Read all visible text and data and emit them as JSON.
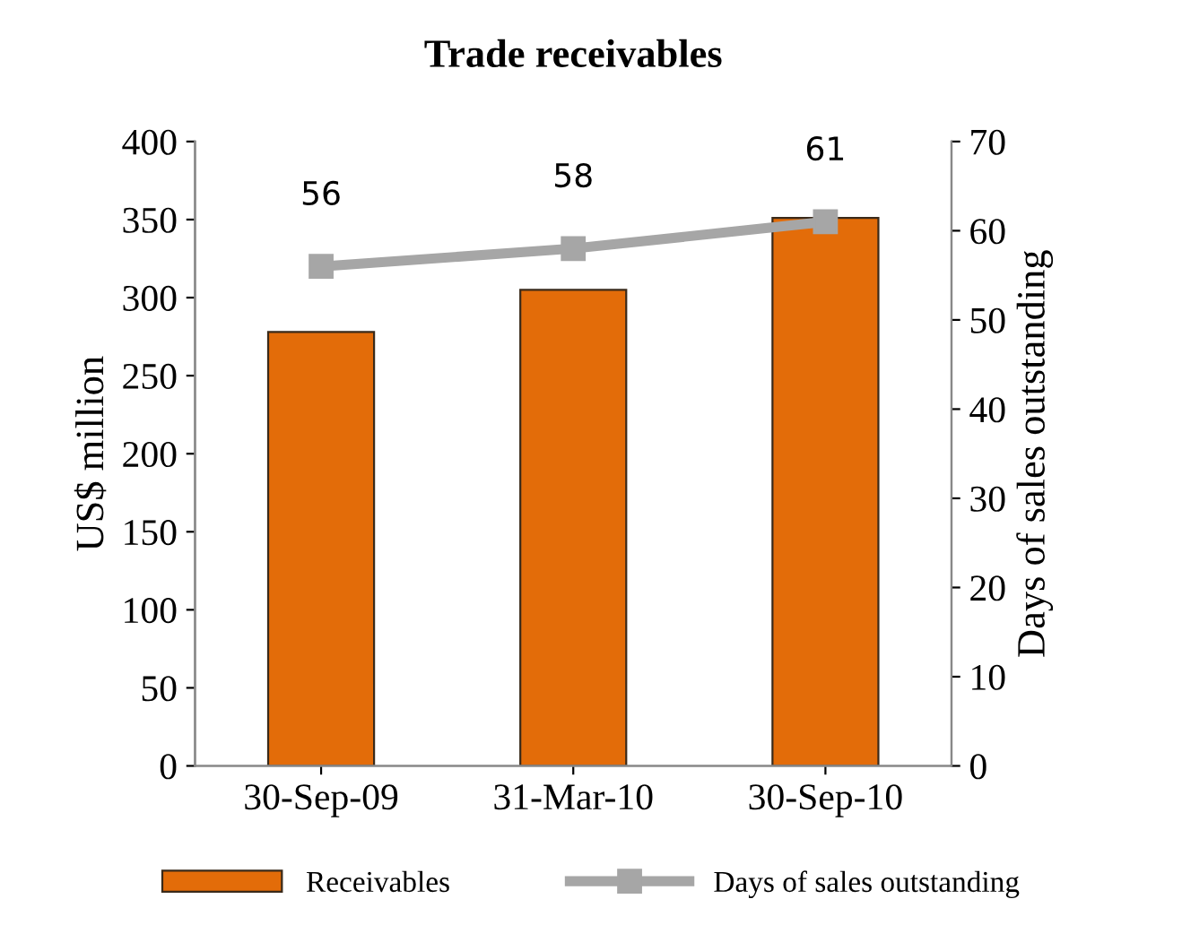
{
  "chart_data": {
    "type": "bar",
    "title": "Trade receivables",
    "ylabel": "US$ million",
    "y2label": "Days of sales outstanding",
    "categories": [
      "30-Sep-09",
      "31-Mar-10",
      "30-Sep-10"
    ],
    "series": [
      {
        "name": "Receivables",
        "color": "#e36c09",
        "values": [
          278,
          305,
          351
        ]
      },
      {
        "name": "Days of sales outstanding",
        "type": "line",
        "axis": "y2",
        "color": "#a6a6a6",
        "values": [
          56,
          58,
          61
        ],
        "value_labels": [
          "56",
          "58",
          "61"
        ],
        "marker": "square"
      }
    ],
    "ylim": [
      0,
      400
    ],
    "yticks": [
      0,
      50,
      100,
      150,
      200,
      250,
      300,
      350,
      400
    ],
    "y2lim": [
      0,
      70
    ],
    "y2ticks": [
      0,
      10,
      20,
      30,
      40,
      50,
      60,
      70
    ],
    "grid": false,
    "legend": "bottom"
  }
}
